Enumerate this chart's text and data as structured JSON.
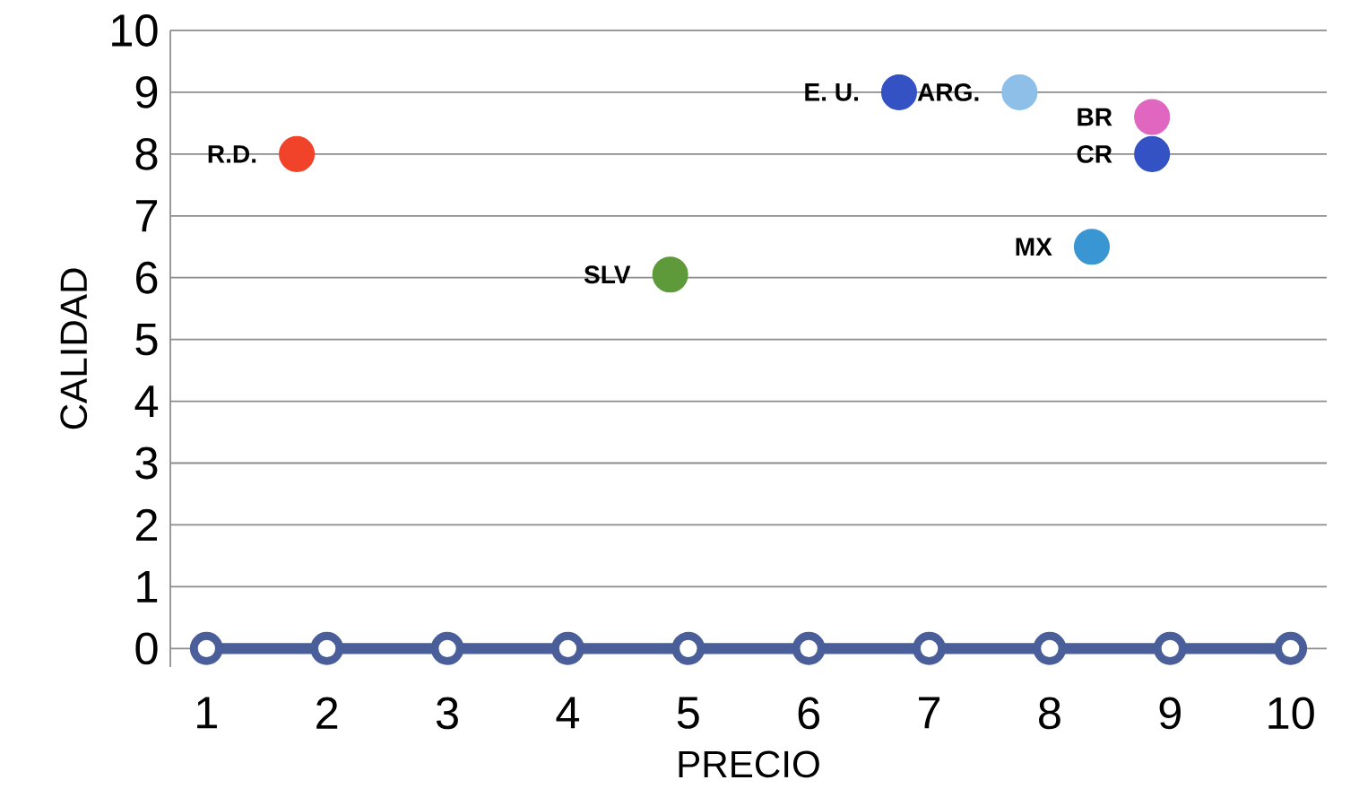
{
  "chart_data": {
    "type": "scatter",
    "xlabel": "PRECIO",
    "ylabel": "CALIDAD",
    "xlim": [
      0.7,
      10.3
    ],
    "ylim": [
      -0.3,
      10
    ],
    "xticks": [
      1,
      2,
      3,
      4,
      5,
      6,
      7,
      8,
      9,
      10
    ],
    "yticks": [
      0,
      1,
      2,
      3,
      4,
      5,
      6,
      7,
      8,
      9,
      10
    ],
    "grid": "y",
    "marker": "circle",
    "series": [
      {
        "type": "line",
        "marker": "none",
        "color": "#4a5f9a",
        "x": [
          1,
          2,
          3,
          4,
          5,
          6,
          7,
          8,
          9,
          10
        ],
        "values": [
          0,
          0,
          0,
          0,
          0,
          0,
          0,
          0,
          0,
          0
        ]
      },
      {
        "color": "#4a5f9a",
        "x": [
          1,
          2,
          3,
          4,
          5,
          6,
          7,
          8,
          9,
          10
        ],
        "values": [
          0,
          0,
          0,
          0,
          0,
          0,
          0,
          0,
          0,
          0
        ]
      },
      {
        "x": [
          1.75,
          4.85,
          6.75,
          7.75,
          8.85,
          8.85,
          8.35
        ],
        "values": [
          8.0,
          6.05,
          9.0,
          9.0,
          8.6,
          8.0,
          6.5
        ],
        "colors": [
          "#f0432a",
          "#5e9a3a",
          "#3552c4",
          "#8dbfe8",
          "#e066c0",
          "#3552c4",
          "#3a96d2"
        ]
      }
    ],
    "annotations": [
      {
        "text": "R.D.",
        "x": 1.75,
        "y": 8.0
      },
      {
        "text": "SLV",
        "x": 4.85,
        "y": 6.05
      },
      {
        "text": "E. U.",
        "x": 6.75,
        "y": 9.0
      },
      {
        "text": "ARG.",
        "x": 7.75,
        "y": 9.0
      },
      {
        "text": "BR",
        "x": 8.85,
        "y": 8.6
      },
      {
        "text": "CR",
        "x": 8.85,
        "y": 8.0
      },
      {
        "text": "MX",
        "x": 8.35,
        "y": 6.5
      }
    ]
  }
}
